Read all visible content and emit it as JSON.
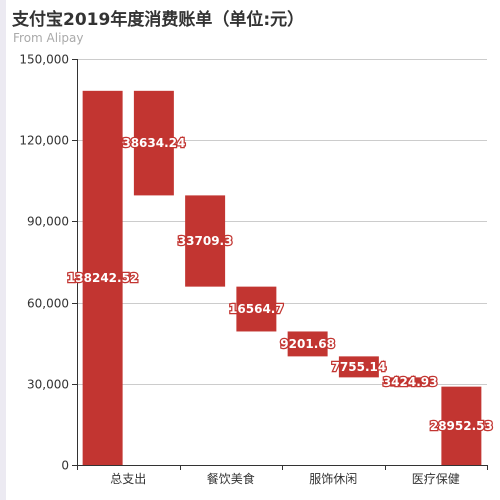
{
  "title": "支付宝2019年度消费账单（单位:元）",
  "subtitle": "From Alipay",
  "colors": {
    "bar": "#c23531",
    "axis": "#333333",
    "grid": "#cccccc"
  },
  "chart_data": {
    "type": "bar",
    "subtype": "waterfall",
    "title": "支付宝2019年度消费账单（单位:元）",
    "subtitle": "From Alipay",
    "categories": [
      "总支出",
      "",
      "餐饮美食",
      "",
      "服饰休闲",
      "",
      "医疗保健",
      ""
    ],
    "x_tick_labels": [
      "总支出",
      "餐饮美食",
      "服饰休闲",
      "医疗保健"
    ],
    "values": [
      138242.52,
      38634.24,
      33709.3,
      16564.7,
      9201.68,
      7755.14,
      3424.93,
      28952.53
    ],
    "bases": [
      0,
      99608.28,
      65898.98,
      49334.28,
      40132.6,
      32377.46,
      28952.53,
      0
    ],
    "labels": [
      "138242.52",
      "38634.24",
      "33709.3",
      "16564.7",
      "9201.68",
      "7755.14",
      "3424.93",
      "28952.53"
    ],
    "ylim": [
      0,
      150000
    ],
    "yticks": [
      0,
      30000,
      60000,
      90000,
      120000,
      150000
    ],
    "ytick_labels": [
      "0",
      "30,000",
      "60,000",
      "90,000",
      "120,000",
      "150,000"
    ],
    "grid": true,
    "legend": "none"
  }
}
